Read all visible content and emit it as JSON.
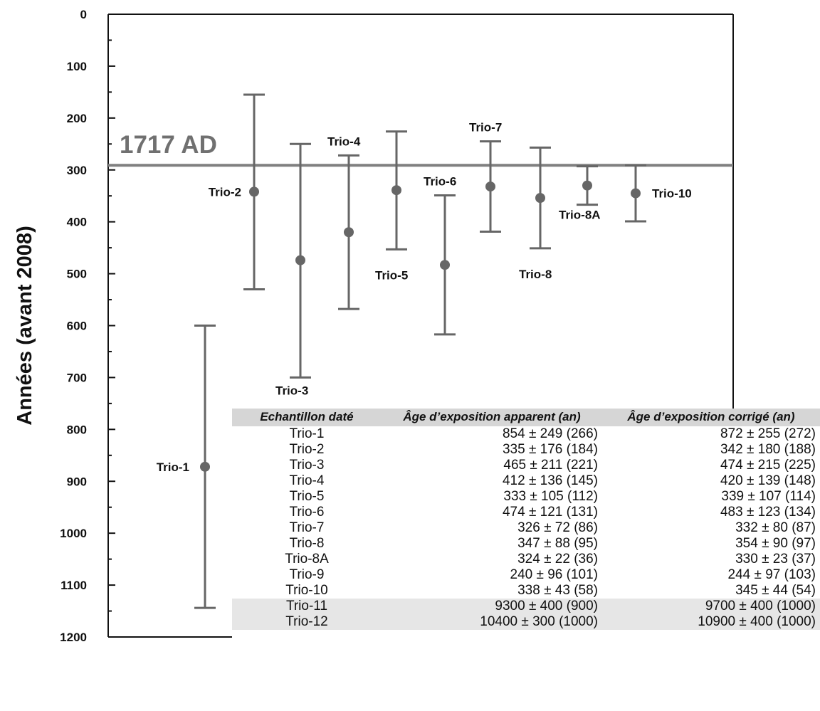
{
  "chart_data": {
    "type": "scatter",
    "ylabel": "Années (avant 2008)",
    "ylim": [
      0,
      1200
    ],
    "y_inverted": true,
    "yticks": [
      "0",
      "100",
      "200",
      "300",
      "400",
      "500",
      "600",
      "700",
      "800",
      "900",
      "1000",
      "1100",
      "1200"
    ],
    "reference_line": {
      "label": "1717 AD",
      "value": 291
    },
    "points": [
      {
        "label": "Trio-1",
        "value": 872,
        "low": 600,
        "high": 1144
      },
      {
        "label": "Trio-2",
        "value": 342,
        "low": 155,
        "high": 530
      },
      {
        "label": "Trio-3",
        "value": 474,
        "low": 250,
        "high": 700
      },
      {
        "label": "Trio-4",
        "value": 420,
        "low": 272,
        "high": 568
      },
      {
        "label": "Trio-5",
        "value": 339,
        "low": 226,
        "high": 453
      },
      {
        "label": "Trio-6",
        "value": 483,
        "low": 349,
        "high": 617
      },
      {
        "label": "Trio-7",
        "value": 332,
        "low": 245,
        "high": 419
      },
      {
        "label": "Trio-8",
        "value": 354,
        "low": 257,
        "high": 451
      },
      {
        "label": "Trio-8A",
        "value": 330,
        "low": 293,
        "high": 367
      },
      {
        "label": "Trio-10",
        "value": 345,
        "low": 291,
        "high": 399
      }
    ]
  },
  "table": {
    "headers": [
      "Echantillon daté",
      "Âge d’exposition apparent (an)",
      "Âge d’exposition corrigé (an)"
    ],
    "rows": [
      [
        "Trio-1",
        "854 ± 249 (266)",
        "872 ± 255 (272)"
      ],
      [
        "Trio-2",
        "335 ± 176 (184)",
        "342 ± 180 (188)"
      ],
      [
        "Trio-3",
        "465 ± 211 (221)",
        "474 ± 215 (225)"
      ],
      [
        "Trio-4",
        "412 ± 136 (145)",
        "420 ± 139 (148)"
      ],
      [
        "Trio-5",
        "333 ± 105 (112)",
        "339 ± 107 (114)"
      ],
      [
        "Trio-6",
        "474 ± 121 (131)",
        "483 ± 123 (134)"
      ],
      [
        "Trio-7",
        "326 ± 72 (86)",
        "332 ± 80 (87)"
      ],
      [
        "Trio-8",
        "347 ± 88 (95)",
        "354 ± 90 (97)"
      ],
      [
        "Trio-8A",
        "324 ± 22 (36)",
        "330 ± 23 (37)"
      ],
      [
        "Trio-9",
        "240 ± 96 (101)",
        "244 ± 97 (103)"
      ],
      [
        "Trio-10",
        "338 ± 43 (58)",
        "345 ± 44 (54)"
      ],
      [
        "Trio-11",
        "9300 ± 400 (900)",
        "9700 ± 400 (1000)"
      ],
      [
        "Trio-12",
        "10400 ± 300 (1000)",
        "10900 ± 400 (1000)"
      ]
    ],
    "shaded_rows": [
      "Trio-11",
      "Trio-12"
    ],
    "header_color": "#d6d6d6",
    "shade_color": "#e6e6e6"
  },
  "colors": {
    "marker": "#666666",
    "reference_line": "#808080",
    "axis": "#111111"
  }
}
